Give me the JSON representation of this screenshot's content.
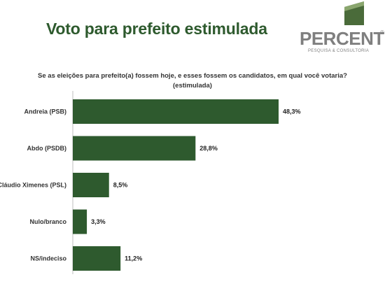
{
  "header": {
    "title": "Voto para prefeito estimulada"
  },
  "logo": {
    "name": "PERCENT",
    "reg": "®",
    "tagline": "PESQUISA & CONSULTORIA"
  },
  "chart_data": {
    "type": "bar",
    "orientation": "horizontal",
    "title": "Se as eleições para prefeito(a) fossem hoje, e esses fossem os candidatos, em qual você votaria?",
    "subtitle": "(estimulada)",
    "categories": [
      "Andreia (PSB)",
      "Abdo (PSDB)",
      "Cláudio Ximenes (PSL)",
      "Nulo/branco",
      "NS/indeciso"
    ],
    "values": [
      48.3,
      28.8,
      8.5,
      3.3,
      11.2
    ],
    "value_labels": [
      "48,3%",
      "28,8%",
      "8,5%",
      "3,3%",
      "11,2%"
    ],
    "bar_color": "#2e5a2e",
    "xlim": [
      0,
      50
    ],
    "grid": false,
    "legend": "none"
  }
}
